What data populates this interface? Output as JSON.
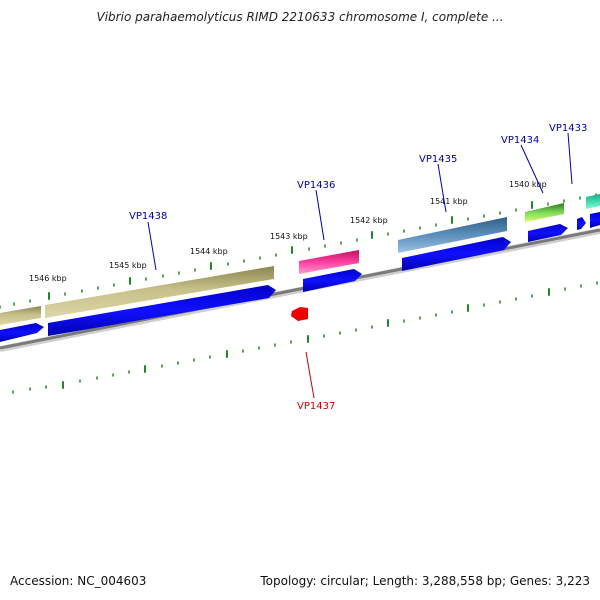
{
  "title": "Vibrio parahaemolyticus RIMD 2210633 chromosome I, complete ...",
  "footer": {
    "accession": "Accession: NC_004603",
    "summary": "Topology: circular; Length: 3,288,558 bp; Genes: 3,223"
  },
  "ruler": {
    "labels": [
      "1546 kbp",
      "1545 kbp",
      "1544 kbp",
      "1543 kbp",
      "1542 kbp",
      "1541 kbp",
      "1540 kbp"
    ]
  },
  "genes": {
    "forward": [
      "VP1438",
      "VP1436",
      "VP1435",
      "VP1434",
      "VP1433"
    ],
    "reverse": [
      "VP1437"
    ]
  },
  "colors": {
    "backbone": "#888888",
    "cds": "#0000ee",
    "label_blue": "#0000aa",
    "label_red": "#cc0000",
    "tick": "#228822"
  }
}
